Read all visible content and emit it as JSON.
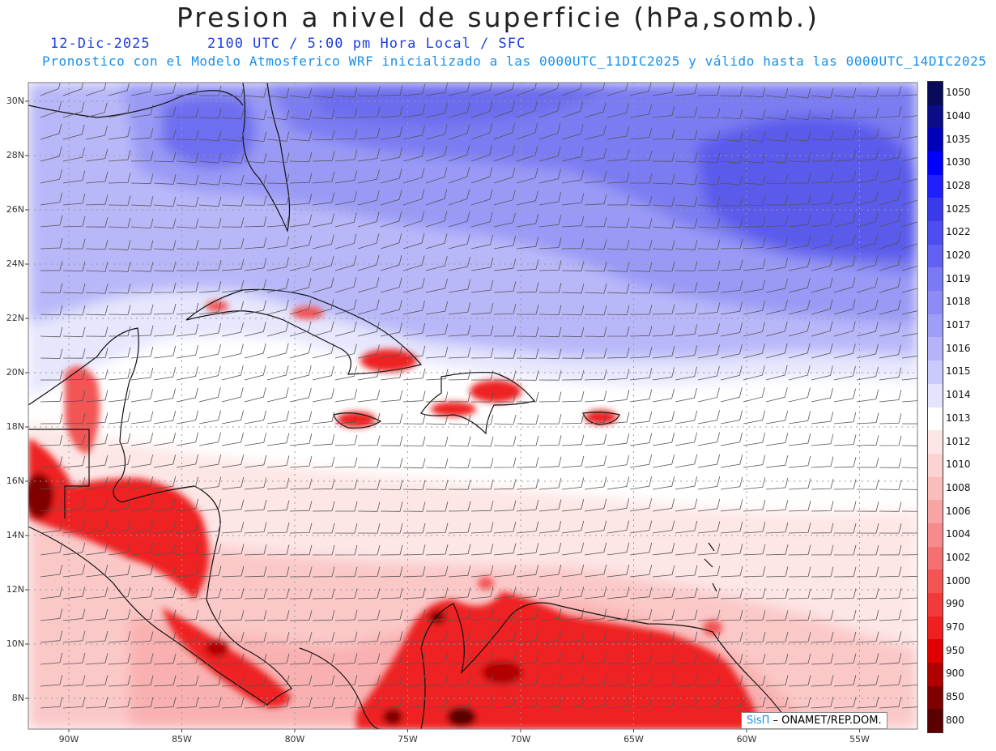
{
  "header": {
    "title": "Presion a nivel de superficie (hPa,somb.)",
    "date": "12-Dic-2025",
    "time": "2100 UTC / 5:00 pm Hora Local / SFC",
    "forecast": "Pronostico con el Modelo Atmosferico WRF inicializado a las 0000UTC_11DIC2025 y válido hasta las  0000UTC_14DIC2025"
  },
  "map": {
    "lat_labels": [
      "30N",
      "28N",
      "26N",
      "24N",
      "22N",
      "20N",
      "18N",
      "16N",
      "14N",
      "12N",
      "10N",
      "8N"
    ],
    "lon_labels": [
      "90W",
      "85W",
      "80W",
      "75W",
      "70W",
      "65W",
      "60W",
      "55W"
    ],
    "lat_values": [
      30,
      28,
      26,
      24,
      22,
      20,
      18,
      16,
      14,
      12,
      10,
      8
    ],
    "lon_values": [
      -90,
      -85,
      -80,
      -75,
      -70,
      -65,
      -60,
      -55
    ]
  },
  "colorbar": {
    "labels": [
      "1050",
      "1040",
      "1035",
      "1030",
      "1028",
      "1025",
      "1022",
      "1020",
      "1019",
      "1018",
      "1017",
      "1016",
      "1015",
      "1014",
      "1013",
      "1012",
      "1010",
      "1008",
      "1006",
      "1004",
      "1002",
      "1000",
      "990",
      "970",
      "950",
      "900",
      "850",
      "800"
    ],
    "colors": [
      "#0a0a5a",
      "#0c0c8a",
      "#0000b8",
      "#0000ff",
      "#2020ff",
      "#3a3ae8",
      "#4d4df0",
      "#6262f2",
      "#7a7af4",
      "#8c8cf6",
      "#9e9ef8",
      "#b4b4fa",
      "#cacafc",
      "#e4e4fe",
      "#ffffff",
      "#fde6e6",
      "#fcd2d2",
      "#fbbcbc",
      "#f9a4a4",
      "#f78a8a",
      "#f57070",
      "#f35454",
      "#f13a3a",
      "#ee2020",
      "#e00000",
      "#b00000",
      "#800000",
      "#5a0000"
    ]
  },
  "credit": {
    "brand": "SisΠ",
    "org": " – ONAMET/REP.DOM."
  }
}
